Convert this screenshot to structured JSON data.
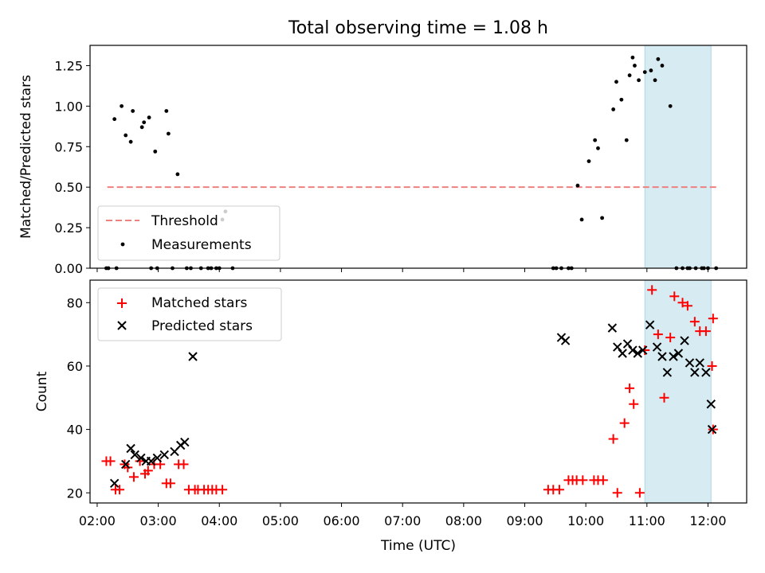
{
  "figure": {
    "title": "Total observing time = 1.08 h",
    "xlabel": "Time (UTC)",
    "highlight_color": "#add8e6"
  },
  "chart_data": [
    {
      "type": "scatter",
      "panel": "top",
      "ylabel": "Matched/Predicted stars",
      "xlim": [
        "01:53",
        "12:38"
      ],
      "ylim": [
        0,
        1.375
      ],
      "yticks": [
        0.0,
        0.25,
        0.5,
        0.75,
        1.0,
        1.25
      ],
      "ytick_labels": [
        "0.00",
        "0.25",
        "0.50",
        "0.75",
        "1.00",
        "1.25"
      ],
      "highlight": {
        "from": "10:58",
        "to": "12:03"
      },
      "legend_position": "lower left",
      "threshold": {
        "name": "Threshold",
        "value": 0.5,
        "from": "02:10",
        "to": "12:10",
        "color": "#f08080",
        "style": "dashed"
      },
      "series": [
        {
          "name": "Measurements",
          "color": "#000000",
          "marker": "dot",
          "x": [
            "02:09",
            "02:11",
            "02:17",
            "02:19",
            "02:24",
            "02:28",
            "02:33",
            "02:35",
            "02:44",
            "02:46",
            "02:51",
            "02:53",
            "02:57",
            "02:59",
            "03:08",
            "03:10",
            "03:14",
            "03:19",
            "03:28",
            "03:32",
            "03:42",
            "03:49",
            "03:52",
            "03:57",
            "04:00",
            "04:03",
            "04:06",
            "04:13",
            "09:28",
            "09:31",
            "09:36",
            "09:43",
            "09:46",
            "09:52",
            "09:56",
            "10:03",
            "10:09",
            "10:12",
            "10:16",
            "10:27",
            "10:30",
            "10:35",
            "10:40",
            "10:43",
            "10:46",
            "10:48",
            "10:52",
            "10:58",
            "11:04",
            "11:08",
            "11:11",
            "11:15",
            "11:23",
            "11:29",
            "11:35",
            "11:40",
            "11:42",
            "11:48",
            "11:54",
            "11:56",
            "12:00",
            "12:08"
          ],
          "y": [
            0.0,
            0.0,
            0.92,
            0.0,
            1.0,
            0.82,
            0.78,
            0.97,
            0.87,
            0.9,
            0.93,
            0.0,
            0.72,
            0.0,
            0.97,
            0.83,
            0.0,
            0.58,
            0.0,
            0.0,
            0.0,
            0.0,
            0.0,
            0.0,
            0.0,
            0.3,
            0.35,
            0.0,
            0.0,
            0.0,
            0.0,
            0.0,
            0.0,
            0.51,
            0.3,
            0.66,
            0.79,
            0.74,
            0.31,
            0.98,
            1.15,
            1.04,
            0.79,
            1.19,
            1.3,
            1.25,
            1.16,
            1.21,
            1.22,
            1.16,
            1.29,
            1.25,
            1.0,
            0.0,
            0.0,
            0.0,
            0.0,
            0.0,
            0.0,
            0.0,
            0.0,
            0.0
          ]
        }
      ]
    },
    {
      "type": "scatter",
      "panel": "bottom",
      "ylabel": "Count",
      "xlim": [
        "01:53",
        "12:38"
      ],
      "ylim": [
        16.8,
        87.1
      ],
      "yticks": [
        20,
        40,
        60,
        80
      ],
      "ytick_labels": [
        "20",
        "40",
        "60",
        "80"
      ],
      "xticks": [
        "02:00",
        "03:00",
        "04:00",
        "05:00",
        "06:00",
        "07:00",
        "08:00",
        "09:00",
        "10:00",
        "11:00",
        "12:00"
      ],
      "highlight": {
        "from": "10:58",
        "to": "12:03"
      },
      "legend_position": "upper left",
      "series": [
        {
          "name": "Matched stars",
          "color": "#ff0000",
          "marker": "plus",
          "x": [
            "02:09",
            "02:13",
            "02:18",
            "02:22",
            "02:27",
            "02:30",
            "02:36",
            "02:42",
            "02:47",
            "02:50",
            "02:56",
            "03:02",
            "03:08",
            "03:12",
            "03:20",
            "03:25",
            "03:30",
            "03:36",
            "03:39",
            "03:45",
            "03:49",
            "03:53",
            "03:57",
            "04:03",
            "09:23",
            "09:28",
            "09:34",
            "09:43",
            "09:47",
            "09:51",
            "09:57",
            "10:08",
            "10:12",
            "10:17",
            "10:27",
            "10:31",
            "10:38",
            "10:43",
            "10:47",
            "10:53",
            "10:58",
            "11:05",
            "11:11",
            "11:17",
            "11:23",
            "11:27",
            "11:35",
            "11:40",
            "11:47",
            "11:52",
            "11:58",
            "12:05"
          ],
          "y": [
            30,
            30,
            21,
            21,
            29,
            28,
            25,
            30,
            26,
            27,
            29,
            29,
            23,
            23,
            29,
            29,
            21,
            21,
            21,
            21,
            21,
            21,
            21,
            21,
            21,
            21,
            21,
            24,
            24,
            24,
            24,
            24,
            24,
            24,
            37,
            20,
            42,
            53,
            48,
            20,
            65,
            84,
            70,
            50,
            69,
            82,
            80,
            79,
            74,
            71,
            71,
            75
          ]
        },
        {
          "name": "Predicted stars",
          "color": "#000000",
          "marker": "x",
          "x": [
            "02:17",
            "02:28",
            "02:33",
            "02:37",
            "02:43",
            "02:48",
            "02:53",
            "02:59",
            "03:06",
            "03:16",
            "03:22",
            "03:26",
            "03:34",
            "09:36",
            "09:40",
            "10:26",
            "10:31",
            "10:36",
            "10:41",
            "10:46",
            "10:51",
            "10:56",
            "11:03",
            "11:10",
            "11:15",
            "11:20",
            "11:26",
            "11:31",
            "11:37",
            "11:42",
            "11:47",
            "11:52",
            "11:58",
            "12:03"
          ],
          "y": [
            23,
            29,
            34,
            32,
            31,
            30,
            30,
            31,
            32,
            33,
            35,
            36,
            63,
            69,
            68,
            72,
            66,
            64,
            67,
            65,
            64,
            65,
            73,
            66,
            63,
            58,
            63,
            64,
            68,
            61,
            58,
            61,
            58,
            48
          ]
        }
      ],
      "tail_points": {
        "matched": {
          "x": "12:04",
          "y": 60
        },
        "matched_2": {
          "x": "12:05",
          "y": 40
        },
        "predicted_2": {
          "x": "12:04",
          "y": 40
        }
      }
    }
  ]
}
